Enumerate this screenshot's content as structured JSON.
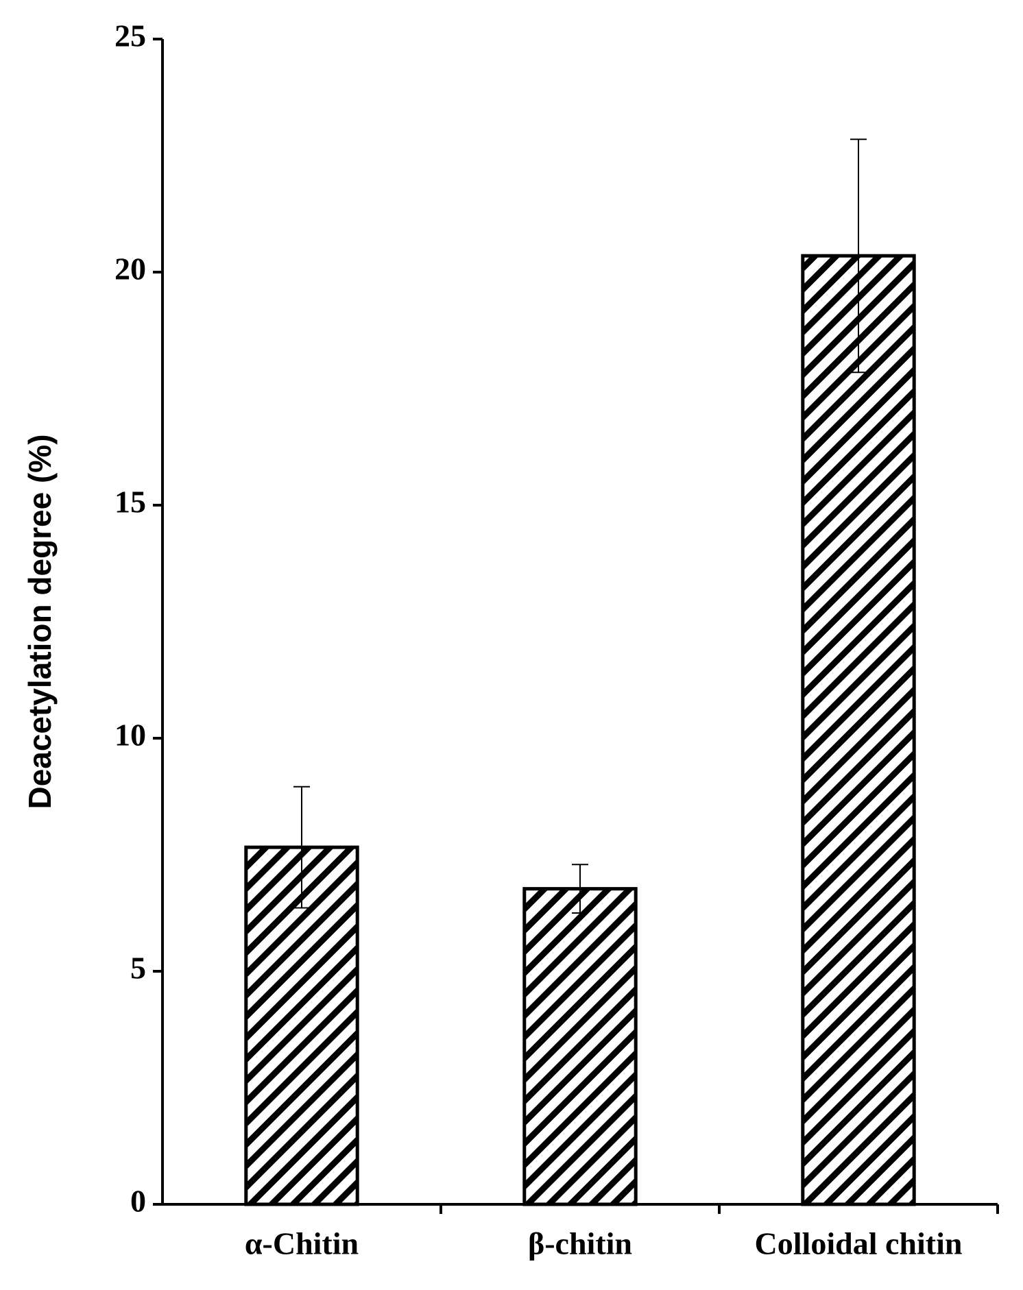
{
  "chart_data": {
    "type": "bar",
    "y_label": "Deacetylation degree (%)",
    "categories": [
      "α-Chitin",
      "β-chitin",
      "Colloidal chitin"
    ],
    "values": [
      7.66,
      6.77,
      20.35
    ],
    "errors": [
      1.3,
      0.52,
      2.5
    ],
    "color": "#000000",
    "ylim": [
      0,
      25
    ],
    "yticks": [
      0,
      5,
      10,
      15,
      20,
      25
    ],
    "grid": false
  }
}
